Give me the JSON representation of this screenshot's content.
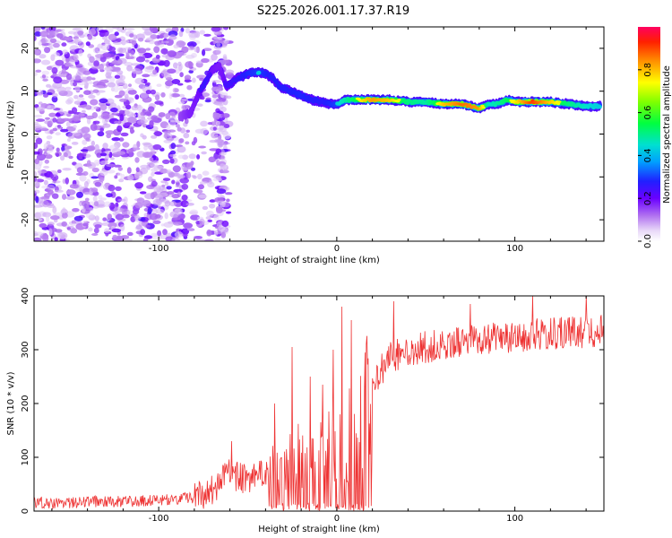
{
  "title": "S225.2026.001.17.37.R19",
  "chart_data": [
    {
      "type": "heatmap",
      "xlabel": "Height of straight line (km)",
      "ylabel": "Frequency (Hz)",
      "xlim": [
        -170,
        150
      ],
      "ylim": [
        -25,
        25
      ],
      "x_ticks": [
        -100,
        0,
        100
      ],
      "y_ticks": [
        -20,
        -10,
        0,
        10,
        20
      ],
      "colorbar": {
        "label": "Normalized spectral amplitude",
        "range": [
          0,
          1
        ],
        "ticks": [
          "0.0",
          "0.2",
          "0.4",
          "0.6",
          "0.8"
        ],
        "tick_values": [
          0.0,
          0.2,
          0.4,
          0.6,
          0.8
        ]
      },
      "ridge": {
        "x": [
          -88,
          -82,
          -78,
          -74,
          -70,
          -66,
          -62,
          -56,
          -50,
          -44,
          -40,
          -36,
          -32,
          -26,
          -20,
          -14,
          -8,
          -4,
          0,
          5,
          10,
          20,
          30,
          40,
          50,
          60,
          70,
          80,
          86,
          90,
          96,
          100,
          110,
          120,
          130,
          140,
          148
        ],
        "freq": [
          4,
          5,
          9,
          12,
          15,
          16,
          11,
          13,
          14,
          14.5,
          14,
          13,
          11,
          10,
          9,
          8,
          7.5,
          7,
          7,
          8,
          8,
          8,
          8,
          7.5,
          7.5,
          7,
          7,
          6,
          7,
          7,
          8,
          7.5,
          7.5,
          7.5,
          7,
          6.5,
          6.5
        ],
        "amp": [
          0.15,
          0.18,
          0.25,
          0.35,
          0.25,
          0.2,
          0.3,
          0.35,
          0.45,
          0.5,
          0.45,
          0.4,
          0.42,
          0.42,
          0.45,
          0.42,
          0.4,
          0.45,
          0.5,
          0.6,
          0.7,
          0.85,
          0.8,
          0.65,
          0.6,
          0.8,
          0.9,
          0.85,
          0.55,
          0.6,
          0.7,
          0.75,
          0.95,
          0.8,
          0.65,
          0.55,
          0.5
        ]
      }
    },
    {
      "type": "line",
      "xlabel": "Height of straight line (km)",
      "ylabel": "SNR (10 * v/v)",
      "xlim": [
        -170,
        150
      ],
      "ylim": [
        0,
        400
      ],
      "x_ticks": [
        -100,
        0,
        100
      ],
      "y_ticks": [
        0,
        100,
        200,
        300,
        400
      ],
      "color": "#ee3333",
      "trend": {
        "x": [
          -170,
          -100,
          -80,
          -70,
          -60,
          -50,
          -40,
          -30,
          -20,
          -10,
          0,
          10,
          20,
          30,
          40,
          60,
          80,
          100,
          120,
          150
        ],
        "y": [
          15,
          20,
          25,
          40,
          70,
          55,
          70,
          100,
          110,
          125,
          140,
          180,
          240,
          285,
          300,
          310,
          320,
          325,
          330,
          335
        ]
      },
      "spikes": [
        {
          "x": -59,
          "y": 130
        },
        {
          "x": -35,
          "y": 200
        },
        {
          "x": -25,
          "y": 305
        },
        {
          "x": -15,
          "y": 250
        },
        {
          "x": -8,
          "y": 235
        },
        {
          "x": -2,
          "y": 300
        },
        {
          "x": 3,
          "y": 380
        },
        {
          "x": 8,
          "y": 355
        },
        {
          "x": 32,
          "y": 390
        },
        {
          "x": 75,
          "y": 385
        },
        {
          "x": 110,
          "y": 400
        },
        {
          "x": 140,
          "y": 400
        }
      ]
    }
  ]
}
